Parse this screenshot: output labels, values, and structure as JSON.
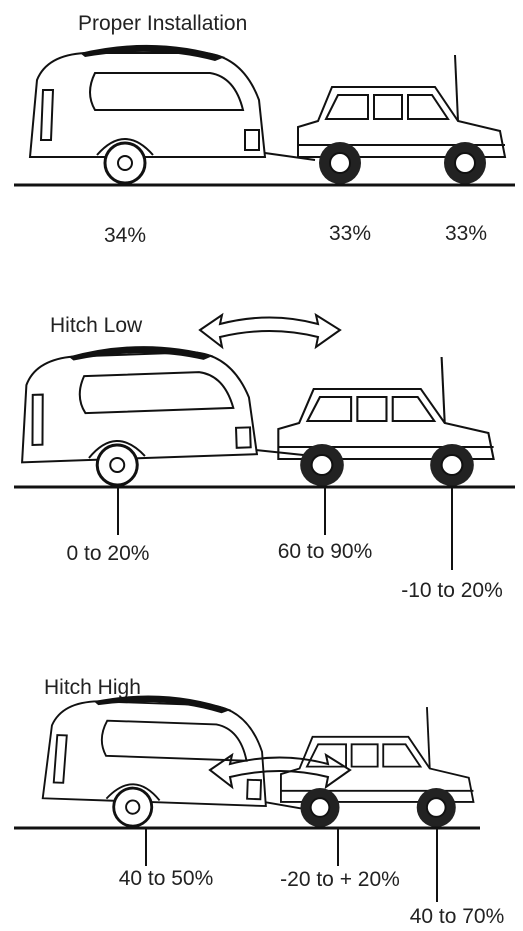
{
  "panels": [
    {
      "title": "Proper Installation",
      "labels": [
        "34%",
        "33%",
        "33%"
      ]
    },
    {
      "title": "Hitch Low",
      "labels": [
        "0 to 20%",
        "60 to 90%",
        "-10 to 20%"
      ]
    },
    {
      "title": "Hitch High",
      "labels": [
        "40 to 50%",
        "-20 to + 20%",
        "40 to 70%"
      ]
    }
  ]
}
